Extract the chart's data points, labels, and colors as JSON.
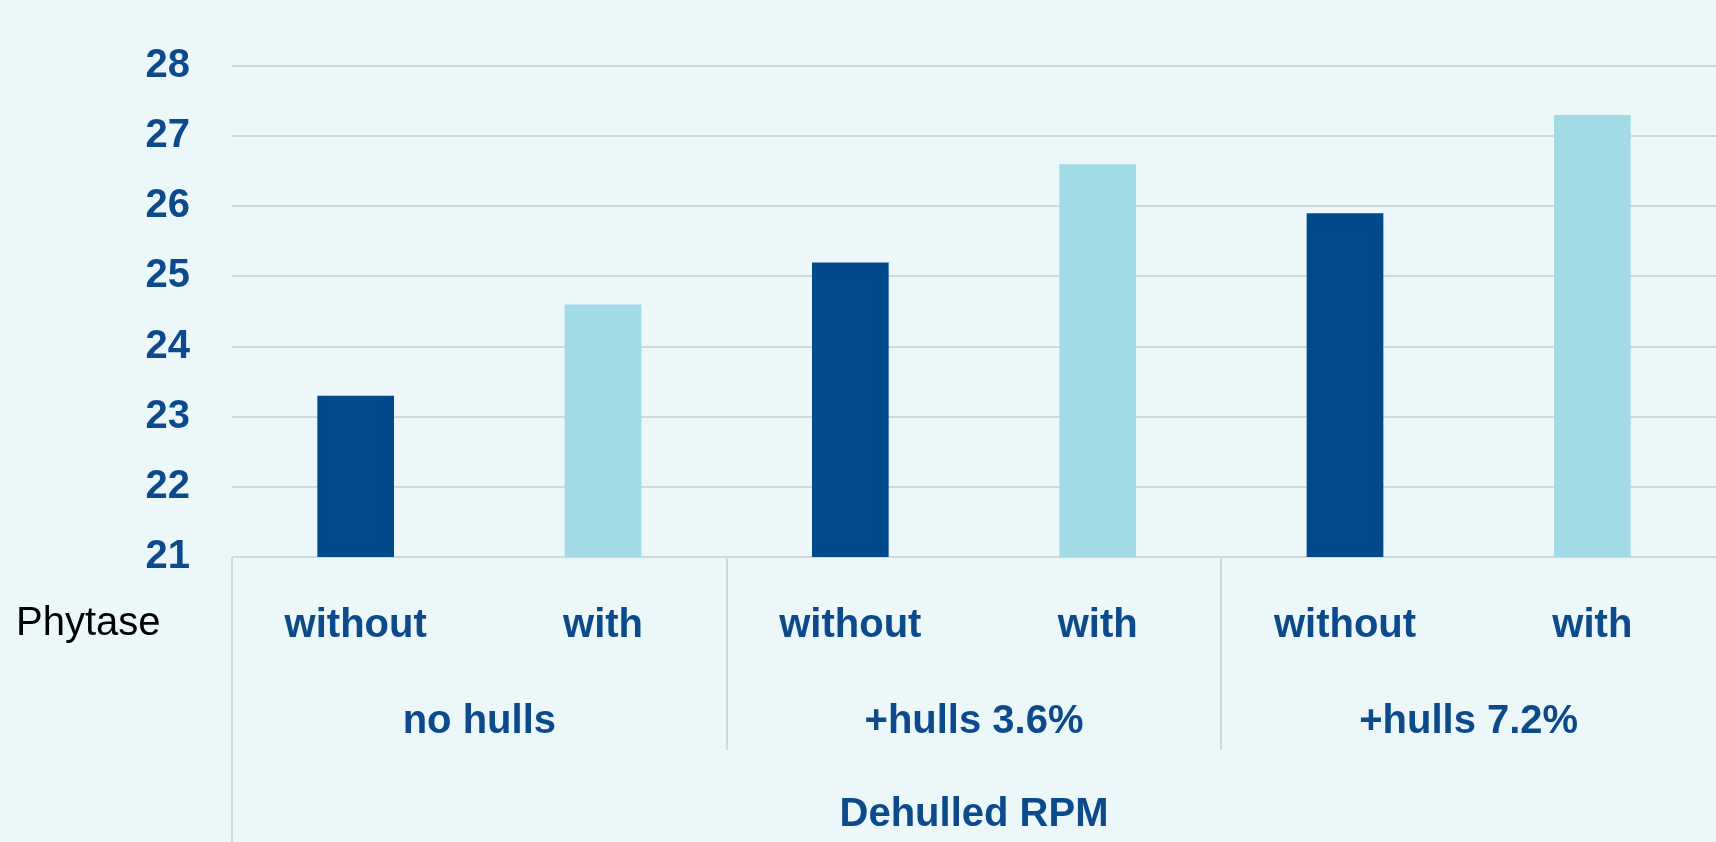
{
  "chart_data": {
    "type": "bar",
    "categories": [
      "without",
      "with",
      "without",
      "with",
      "without",
      "with"
    ],
    "values": [
      23.3,
      24.6,
      25.2,
      26.6,
      25.9,
      27.3
    ],
    "colors": [
      "#004a8c",
      "#a2dbe5",
      "#004a8c",
      "#a2dbe5",
      "#004a8c",
      "#a2dbe5"
    ],
    "ylim": [
      21,
      28
    ],
    "yticks": [
      21,
      22,
      23,
      24,
      25,
      26,
      27,
      28
    ],
    "xlabel": "Dehulled RPM",
    "annotations": [
      "Phytase",
      "no hulls",
      "+hulls 3.6%",
      "+hulls 7.2%"
    ],
    "grid": "y",
    "legend": false
  }
}
